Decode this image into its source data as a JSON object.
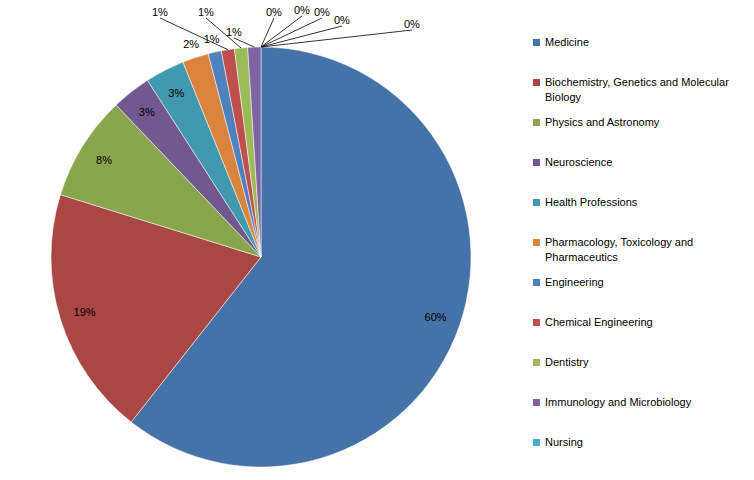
{
  "chart_data": {
    "type": "pie",
    "categories": [
      "Medicine",
      "Biochemistry, Genetics and Molecular Biology",
      "Physics and Astronomy",
      "Neuroscience",
      "Health Professions",
      "Pharmacology, Toxicology and Pharmaceutics",
      "Engineering",
      "Chemical Engineering",
      "Dentistry",
      "Immunology and Microbiology",
      "Nursing",
      null,
      null,
      null,
      null
    ],
    "values": [
      60,
      19,
      8,
      3,
      3,
      2,
      1,
      1,
      1,
      1,
      0,
      0,
      0,
      0,
      0
    ],
    "value_labels": [
      "60%",
      "19%",
      "8%",
      "3%",
      "3%",
      "2%",
      "1%",
      "1%",
      "1%",
      "1%",
      "0%",
      "0%",
      "0%",
      "0%",
      "0%"
    ],
    "colors": [
      "#4572A7",
      "#AA4643",
      "#89A54E",
      "#71588F",
      "#4198AF",
      "#DB843D",
      "#4F81BD",
      "#C0504D",
      "#9BBB59",
      "#8064A2",
      "#4BACC6",
      "#F79646",
      "#A5B6D8",
      "#D9A3A2",
      "#C6D6A4"
    ],
    "data_labels": true,
    "legend": "right"
  }
}
